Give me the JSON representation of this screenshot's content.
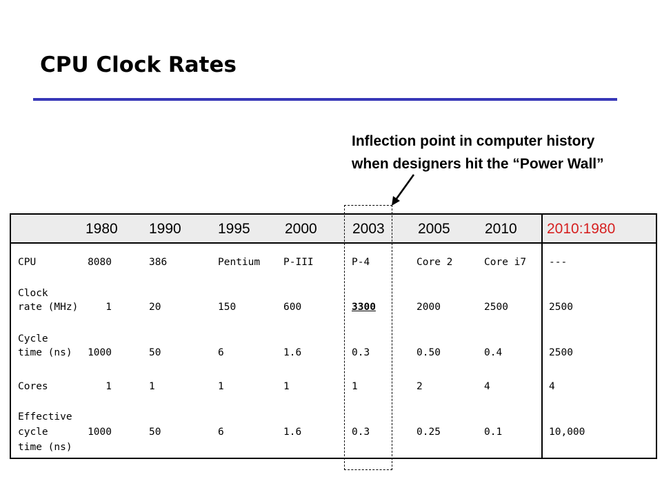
{
  "title": "CPU Clock Rates",
  "annotation": {
    "line1": "Inflection point in computer history",
    "line2": "when designers hit the “Power Wall”"
  },
  "colors": {
    "rule": "#3838b8",
    "ratio_header": "#d62020",
    "header_bg": "#ececec"
  },
  "table": {
    "years": [
      "1980",
      "1990",
      "1995",
      "2000",
      "2003",
      "2005",
      "2010"
    ],
    "ratio_header": "2010:1980",
    "rows": [
      {
        "label_lines": [
          "CPU"
        ],
        "first": "8080",
        "values": [
          "386",
          "Pentium",
          "P-III",
          "P-4",
          "Core 2",
          "Core i7"
        ],
        "ratio": "---"
      },
      {
        "label_lines": [
          "Clock",
          "rate (MHz)"
        ],
        "first": "1",
        "values": [
          "20",
          "150",
          "600",
          "3300",
          "2000",
          "2500"
        ],
        "ratio": "2500"
      },
      {
        "label_lines": [
          "Cycle",
          "time (ns)"
        ],
        "first": "1000",
        "values": [
          "50",
          "6",
          "1.6",
          "0.3",
          "0.50",
          "0.4"
        ],
        "ratio": "2500"
      },
      {
        "label_lines": [
          "Cores"
        ],
        "first": "1",
        "values": [
          "1",
          "1",
          "1",
          "1",
          "2",
          "4"
        ],
        "ratio": "4"
      },
      {
        "label_lines": [
          "Effective",
          "cycle",
          "time (ns)"
        ],
        "first": "1000",
        "values": [
          "50",
          "6",
          "1.6",
          "0.3",
          "0.25",
          "0.1"
        ],
        "ratio": "10,000"
      }
    ]
  }
}
